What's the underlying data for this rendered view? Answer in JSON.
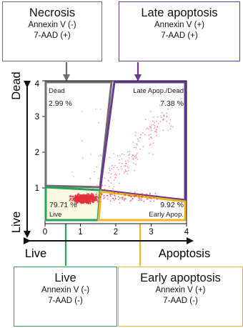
{
  "colors": {
    "necrosis": "#6e6e6e",
    "late": "#6a3a99",
    "live": "#27a35a",
    "early": "#f0b425",
    "dots": "#e0303a"
  },
  "boxes": {
    "necrosis": {
      "title": "Necrosis",
      "line1": "Annexin V (-)",
      "line2": "7-AAD (+)"
    },
    "late": {
      "title": "Late apoptosis",
      "line1": "Annexin V (+)",
      "line2": "7-AAD (+)"
    },
    "live": {
      "title": "Live",
      "line1": "Annexin V (-)",
      "line2": "7-AAD (-)"
    },
    "early": {
      "title": "Early apoptosis",
      "line1": "Annexin V (+)",
      "line2": "7-AAD (-)"
    }
  },
  "plot": {
    "quadrants": {
      "ul": {
        "name": "Dead",
        "pct": "2.99 %"
      },
      "ur": {
        "name": "Late Apop./Dead",
        "pct": "7.38 %"
      },
      "ll": {
        "name": "Live",
        "pct": "79.71 %"
      },
      "lr": {
        "name": "Early Apop.",
        "pct": "9.92 %"
      }
    },
    "x_ticks": [
      "0",
      "1",
      "2",
      "3",
      "4"
    ],
    "y_ticks": [
      "1",
      "2",
      "3",
      "4"
    ]
  },
  "axes": {
    "y_top": "Dead",
    "y_bottom": "Live",
    "x_left": "Live",
    "x_right": "Apoptosis"
  }
}
